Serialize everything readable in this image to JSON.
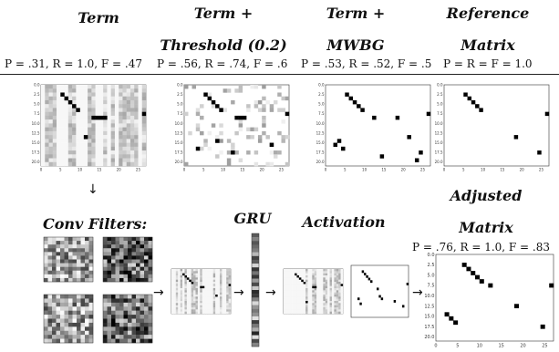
{
  "headers": {
    "term": "Term",
    "term_threshold_line1": "Term +",
    "term_threshold_line2": "Threshold (0.2)",
    "term_mwbg_line1": "Term +",
    "term_mwbg_line2": "MWBG",
    "reference_line1": "Reference",
    "reference_line2": "Matrix",
    "conv_filters": "Conv Filters:",
    "gru": "GRU",
    "activation": "Activation",
    "adjusted_line1": "Adjusted",
    "adjusted_line2": "Matrix"
  },
  "metrics": {
    "term": "P = .31, R = 1.0, F = .47",
    "threshold": "P = .56, R = .74, F = .6",
    "mwbg": "P = .53, R = .52, F = .5",
    "reference": "P = R = F = 1.0",
    "adjusted": "P = .76, R = 1.0, F = .83"
  },
  "axis": {
    "y_ticks": [
      "0.0",
      "2.5",
      "5.0",
      "7.5",
      "10.0",
      "12.5",
      "15.0",
      "17.5",
      "20.0"
    ],
    "x_ticks": [
      "0",
      "5",
      "10",
      "15",
      "20",
      "25"
    ]
  },
  "matrices": {
    "reference_points": [
      [
        5,
        2
      ],
      [
        6,
        3
      ],
      [
        7,
        4
      ],
      [
        8,
        5
      ],
      [
        9,
        6
      ],
      [
        18,
        13
      ],
      [
        26,
        7
      ],
      [
        24,
        17
      ]
    ],
    "mwbg_points": [
      [
        5,
        2
      ],
      [
        6,
        3
      ],
      [
        7,
        4
      ],
      [
        8,
        5
      ],
      [
        9,
        6
      ],
      [
        12,
        8
      ],
      [
        18,
        8
      ],
      [
        21,
        13
      ],
      [
        26,
        7
      ],
      [
        24,
        17
      ],
      [
        3,
        14
      ],
      [
        2,
        15
      ],
      [
        4,
        16
      ],
      [
        14,
        18
      ],
      [
        23,
        19
      ]
    ],
    "adjusted_points": [
      [
        6,
        2
      ],
      [
        7,
        3
      ],
      [
        8,
        4
      ],
      [
        9,
        5
      ],
      [
        10,
        6
      ],
      [
        12,
        7
      ],
      [
        18,
        12
      ],
      [
        26,
        7
      ],
      [
        24,
        17
      ],
      [
        2,
        14
      ],
      [
        3,
        15
      ],
      [
        4,
        16
      ]
    ]
  },
  "colors": {
    "ink": "#111111",
    "rule": "#222222",
    "cell_dark": "#000000"
  }
}
